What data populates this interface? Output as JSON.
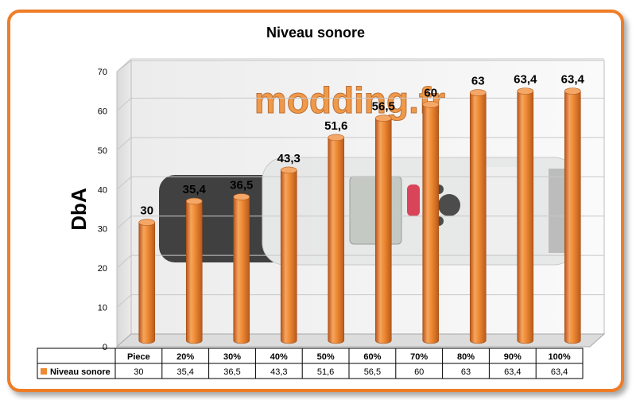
{
  "chart_data": {
    "type": "bar",
    "title": "Niveau sonore",
    "ylabel": "DbA",
    "xlabel": "",
    "categories": [
      "Piece",
      "20%",
      "30%",
      "40%",
      "50%",
      "60%",
      "70%",
      "80%",
      "90%",
      "100%"
    ],
    "series": [
      {
        "name": "Niveau sonore",
        "values": [
          30,
          35.4,
          36.5,
          43.3,
          51.6,
          56.5,
          60,
          63,
          63.4,
          63.4
        ],
        "labels": [
          "30",
          "35,4",
          "36,5",
          "43,3",
          "51,6",
          "56,5",
          "60",
          "63",
          "63,4",
          "63,4"
        ],
        "color": "#ee8a33"
      }
    ],
    "ylim": [
      0,
      70
    ],
    "yticks": [
      0,
      10,
      20,
      30,
      40,
      50,
      60,
      70
    ],
    "grid": true,
    "legend": "data-table",
    "watermark": "modding.fr",
    "colors": {
      "frame": "#ef7d27",
      "bar": "#ee8a33",
      "grid": "#c8c8c8"
    }
  }
}
